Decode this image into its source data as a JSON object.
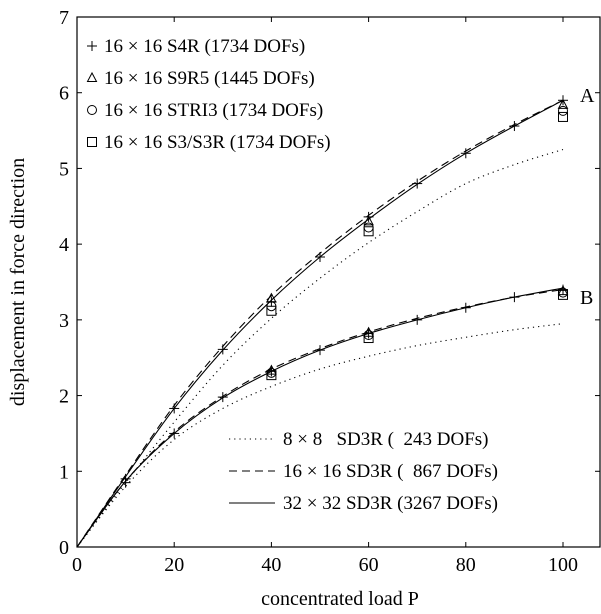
{
  "chart_data": {
    "type": "line",
    "xlabel": "concentrated load P",
    "ylabel": "displacement in force direction",
    "xlim": [
      0,
      100
    ],
    "ylim": [
      0,
      7
    ],
    "xticks": [
      0,
      20,
      40,
      60,
      80,
      100
    ],
    "yticks": [
      0,
      1,
      2,
      3,
      4,
      5,
      6,
      7
    ],
    "grid": false,
    "curve_labels": [
      {
        "text": "A",
        "x": 100,
        "y": 5.9
      },
      {
        "text": "B",
        "x": 100,
        "y": 3.42
      }
    ],
    "line_series": [
      {
        "name": "8 × 8   SD3R (  243 DOFs)",
        "style": "dotted",
        "curves": [
          {
            "id": "A",
            "x": [
              0,
              10,
              20,
              30,
              40,
              50,
              60,
              70,
              80,
              90,
              100
            ],
            "y": [
              0,
              0.85,
              1.65,
              2.4,
              3.02,
              3.55,
              4.02,
              4.43,
              4.8,
              5.05,
              5.25
            ]
          },
          {
            "id": "B",
            "x": [
              0,
              10,
              20,
              30,
              40,
              50,
              60,
              70,
              80,
              90,
              100
            ],
            "y": [
              0,
              0.8,
              1.42,
              1.83,
              2.12,
              2.35,
              2.52,
              2.66,
              2.77,
              2.87,
              2.95
            ]
          }
        ]
      },
      {
        "name": "16 × 16 SD3R (  867 DOFs)",
        "style": "dashed",
        "curves": [
          {
            "id": "A",
            "x": [
              0,
              10,
              20,
              30,
              40,
              50,
              60,
              70,
              80,
              90,
              100
            ],
            "y": [
              0,
              0.95,
              1.87,
              2.65,
              3.32,
              3.88,
              4.38,
              4.83,
              5.23,
              5.58,
              5.9
            ]
          },
          {
            "id": "B",
            "x": [
              0,
              10,
              20,
              30,
              40,
              50,
              60,
              70,
              80,
              90,
              100
            ],
            "y": [
              0,
              0.87,
              1.52,
              1.99,
              2.35,
              2.62,
              2.84,
              3.02,
              3.17,
              3.3,
              3.4
            ]
          }
        ]
      },
      {
        "name": "32 × 32 SD3R (3267 DOFs)",
        "style": "solid",
        "curves": [
          {
            "id": "A",
            "x": [
              0,
              10,
              20,
              30,
              40,
              50,
              60,
              70,
              80,
              90,
              100
            ],
            "y": [
              0,
              0.93,
              1.83,
              2.6,
              3.26,
              3.83,
              4.33,
              4.79,
              5.2,
              5.56,
              5.9
            ]
          },
          {
            "id": "B",
            "x": [
              0,
              10,
              20,
              30,
              40,
              50,
              60,
              70,
              80,
              90,
              100
            ],
            "y": [
              0,
              0.87,
              1.5,
              1.97,
              2.32,
              2.6,
              2.82,
              3.0,
              3.16,
              3.3,
              3.42
            ]
          }
        ]
      }
    ],
    "marker_series": [
      {
        "name": "16 × 16 S4R (1734 DOFs)",
        "marker": "plus",
        "curves": [
          {
            "id": "A",
            "x": [
              10,
              20,
              30,
              40,
              50,
              60,
              70,
              80,
              90,
              100
            ],
            "y": [
              0.85,
              1.83,
              2.61,
              3.24,
              3.83,
              4.36,
              4.8,
              5.2,
              5.56,
              5.9
            ]
          },
          {
            "id": "B",
            "x": [
              10,
              20,
              30,
              40,
              50,
              60,
              70,
              80,
              90,
              100
            ],
            "y": [
              0.9,
              1.5,
              1.98,
              2.32,
              2.6,
              2.82,
              3.0,
              3.16,
              3.3,
              3.4
            ]
          }
        ]
      },
      {
        "name": "16 × 16 S9R5 (1445 DOFs)",
        "marker": "triangle",
        "curves": [
          {
            "id": "A",
            "x": [
              40,
              60,
              100
            ],
            "y": [
              3.28,
              4.3,
              5.84
            ]
          },
          {
            "id": "B",
            "x": [
              40,
              60,
              100
            ],
            "y": [
              2.33,
              2.83,
              3.38
            ]
          }
        ]
      },
      {
        "name": "16 × 16 STRI3 (1734 DOFs)",
        "marker": "circle",
        "curves": [
          {
            "id": "A",
            "x": [
              40,
              60,
              100
            ],
            "y": [
              3.18,
              4.22,
              5.76
            ]
          },
          {
            "id": "B",
            "x": [
              40,
              60,
              100
            ],
            "y": [
              2.3,
              2.8,
              3.36
            ]
          }
        ]
      },
      {
        "name": "16 × 16 S3/S3R (1734 DOFs)",
        "marker": "square",
        "curves": [
          {
            "id": "A",
            "x": [
              40,
              60,
              100
            ],
            "y": [
              3.12,
              4.17,
              5.68
            ]
          },
          {
            "id": "B",
            "x": [
              40,
              60,
              100
            ],
            "y": [
              2.27,
              2.76,
              3.33
            ]
          }
        ]
      }
    ],
    "legends": [
      {
        "placement": "top-left",
        "entries": [
          "16 × 16 S4R (1734 DOFs)",
          "16 × 16 S9R5 (1445 DOFs)",
          "16 × 16 STRI3 (1734 DOFs)",
          "16 × 16 S3/S3R (1734 DOFs)"
        ]
      },
      {
        "placement": "bottom-right",
        "entries": [
          "8 × 8   SD3R (  243 DOFs)",
          "16 × 16 SD3R (  867 DOFs)",
          "32 × 32 SD3R (3267 DOFs)"
        ]
      }
    ]
  }
}
